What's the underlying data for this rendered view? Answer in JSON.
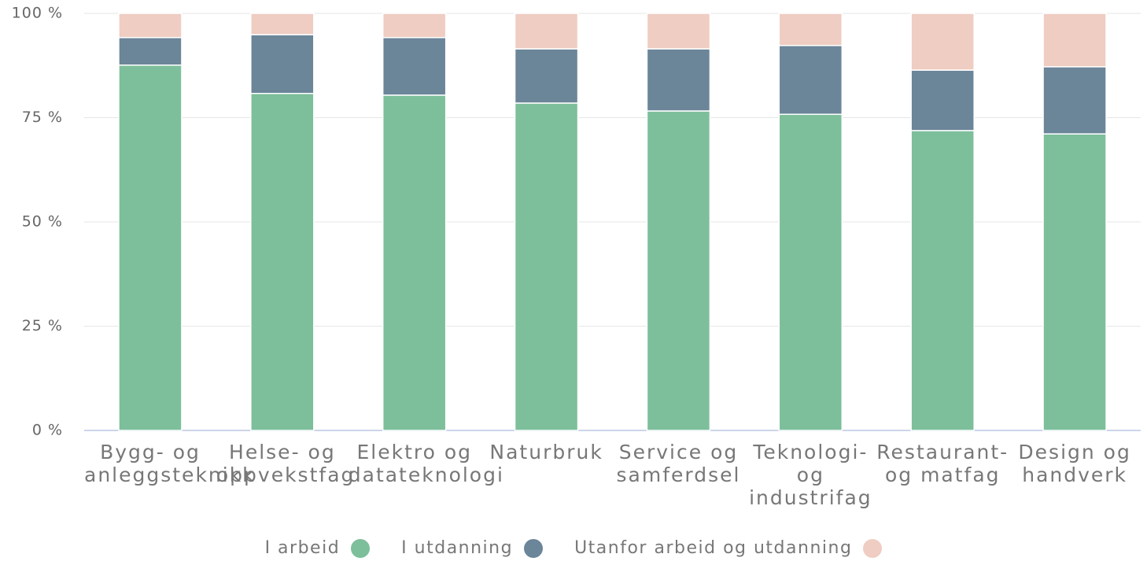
{
  "chart_data": {
    "type": "stacked_bar",
    "categories": [
      "Bygg- og anleggsteknikk",
      "Helse- og oppvekstfag",
      "Elektro og datateknologi",
      "Naturbruk",
      "Service og samferdsel",
      "Teknologi- og industrifag",
      "Restaurant- og matfag",
      "Design og handverk"
    ],
    "series": [
      {
        "name": "I arbeid",
        "color": "#7dbf9b",
        "values": [
          87.6,
          80.8,
          80.4,
          78.5,
          76.6,
          75.8,
          71.9,
          71.1
        ]
      },
      {
        "name": "I utdanning",
        "color": "#6b8599",
        "values": [
          6.6,
          14.1,
          13.8,
          13.0,
          14.9,
          16.5,
          14.5,
          16.1
        ]
      },
      {
        "name": "Utanfor arbeid og utdanning",
        "color": "#efcdc2",
        "values": [
          5.8,
          5.1,
          5.8,
          8.5,
          8.5,
          7.7,
          13.6,
          12.8
        ]
      }
    ],
    "ylim": [
      0,
      100
    ],
    "yticks": [
      {
        "value": 0,
        "label": "0 %"
      },
      {
        "value": 25,
        "label": "25 %"
      },
      {
        "value": 50,
        "label": "50 %"
      },
      {
        "value": 75,
        "label": "75 %"
      },
      {
        "value": 100,
        "label": "100 %"
      }
    ],
    "grid": true
  }
}
